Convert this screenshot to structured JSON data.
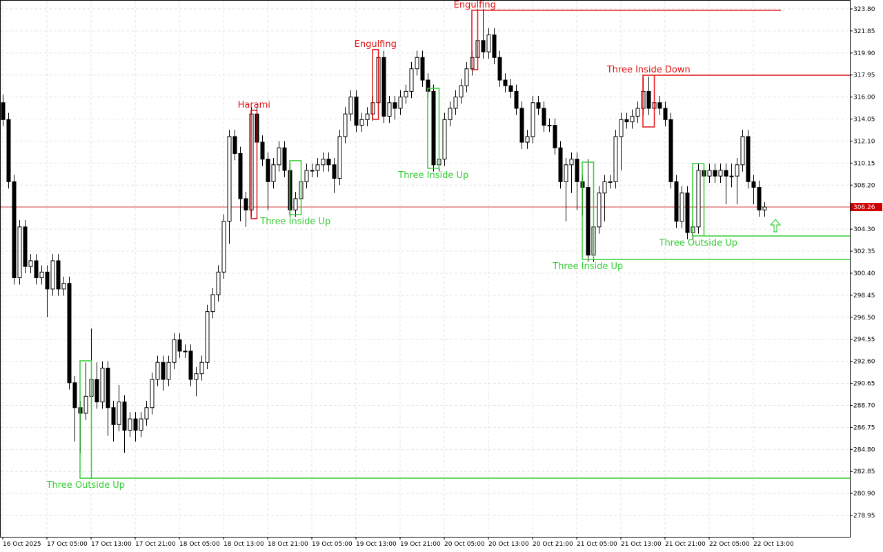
{
  "chart_data": {
    "type": "candlestick",
    "ylim": [
      277.06,
      324.59
    ],
    "yticks": [
      {
        "value": 323.8,
        "label": "323.80"
      },
      321.85,
      {
        "value": 319.9,
        "label": "319.90"
      },
      317.95,
      {
        "value": 316,
        "label": "316.00"
      },
      314.05,
      {
        "value": 312.1,
        "label": "312.10"
      },
      310.15,
      {
        "value": 308.2,
        "label": "308.20"
      },
      306.25,
      {
        "value": 304.3,
        "label": "304.30"
      },
      302.35,
      {
        "value": 300.4,
        "label": "300.40"
      },
      298.45,
      {
        "value": 296.5,
        "label": "296.50"
      },
      294.55,
      {
        "value": 292.6,
        "label": "292.60"
      },
      290.65,
      {
        "value": 288.7,
        "label": "288.70"
      },
      286.75,
      {
        "value": 284.8,
        "label": "284.80"
      },
      282.85,
      {
        "value": 280.9,
        "label": "280.90"
      },
      278.95
    ],
    "xticks": [
      {
        "value": 0,
        "label": "16 Oct 2025"
      },
      {
        "value": 8,
        "label": "17 Oct 05:00"
      },
      {
        "value": 16,
        "label": "17 Oct 13:00"
      },
      {
        "value": 24,
        "label": "17 Oct 21:00"
      },
      {
        "value": 32,
        "label": "18 Oct 05:00"
      },
      {
        "value": 40,
        "label": "18 Oct 13:00"
      },
      {
        "value": 48,
        "label": "18 Oct 21:00"
      },
      {
        "value": 56,
        "label": "19 Oct 05:00"
      },
      {
        "value": 64,
        "label": "19 Oct 13:00"
      },
      {
        "value": 72,
        "label": "19 Oct 21:00"
      },
      {
        "value": 80,
        "label": "20 Oct 05:00"
      },
      {
        "value": 88,
        "label": "20 Oct 13:00"
      },
      {
        "value": 96,
        "label": "20 Oct 21:00"
      },
      {
        "value": 104,
        "label": "21 Oct 05:00"
      },
      {
        "value": 112,
        "label": "21 Oct 13:00"
      },
      {
        "value": 120,
        "label": "21 Oct 21:00"
      },
      {
        "value": 128,
        "label": "22 Oct 05:00"
      },
      {
        "value": 136,
        "label": "22 Oct 13:00"
      }
    ],
    "grid": true,
    "current_price": {
      "value": 306.26,
      "label": "306.26",
      "color": "#d00000"
    },
    "series": [
      {
        "up_color": "#ffffff",
        "down_color": "#000000",
        "ohlc": [
          [
            315.5,
            316.2,
            313.4,
            314
          ],
          [
            314,
            314.6,
            307.9,
            308.5
          ],
          [
            308.5,
            309.1,
            299.4,
            300
          ],
          [
            300,
            305.1,
            299.4,
            304.5
          ],
          [
            304.5,
            305.1,
            300.4,
            301
          ],
          [
            301,
            302.1,
            300.4,
            301.5
          ],
          [
            301.5,
            302.1,
            299.4,
            300
          ],
          [
            300,
            301.1,
            299.4,
            300.5
          ],
          [
            300.5,
            301.1,
            296.5,
            299
          ],
          [
            299,
            302.1,
            298.4,
            301.5
          ],
          [
            301.5,
            302.1,
            298.4,
            299
          ],
          [
            299,
            300.1,
            298.4,
            299.5
          ],
          [
            299.5,
            300.1,
            290.1,
            290.7
          ],
          [
            290.7,
            291.3,
            285.5,
            288.5
          ],
          [
            288.5,
            289.1,
            284.5,
            288
          ],
          [
            288,
            292.5,
            287.4,
            289.5
          ],
          [
            289.5,
            295.5,
            288.9,
            291
          ],
          [
            291,
            292.5,
            288.4,
            289
          ],
          [
            289,
            292.6,
            288.4,
            292
          ],
          [
            292,
            292.6,
            286,
            288.5
          ],
          [
            288.5,
            289.1,
            285.5,
            287
          ],
          [
            287,
            290.5,
            286.4,
            289
          ],
          [
            289,
            289.6,
            284.5,
            286.5
          ],
          [
            286.5,
            288.1,
            285.9,
            287.5
          ],
          [
            287.5,
            288.1,
            285.5,
            286.5
          ],
          [
            286.5,
            288.1,
            285.9,
            287.5
          ],
          [
            287.5,
            289.1,
            286.9,
            288.5
          ],
          [
            288.5,
            291.6,
            287.9,
            291
          ],
          [
            291,
            293.1,
            290.4,
            292.5
          ],
          [
            292.5,
            293.1,
            290,
            291
          ],
          [
            291,
            293.1,
            290.4,
            292.5
          ],
          [
            292.5,
            295.1,
            291.9,
            294.5
          ],
          [
            294.5,
            295.1,
            292.9,
            293.5
          ],
          [
            293.5,
            294.1,
            292.9,
            293.5
          ],
          [
            293.5,
            294.1,
            290.4,
            291
          ],
          [
            291,
            292.1,
            289.5,
            291.5
          ],
          [
            291.5,
            293.1,
            290.9,
            292.5
          ],
          [
            292.5,
            297.6,
            291.9,
            297
          ],
          [
            297,
            299.1,
            296.4,
            298.5
          ],
          [
            298.5,
            301.1,
            297.9,
            300.5
          ],
          [
            300.5,
            305.6,
            299.9,
            305
          ],
          [
            305,
            313.1,
            303,
            312.5
          ],
          [
            312.5,
            313.1,
            310.4,
            311
          ],
          [
            311,
            311.6,
            305,
            307
          ],
          [
            307,
            307.6,
            304.5,
            306
          ],
          [
            306,
            315.1,
            305.4,
            314.5
          ],
          [
            314.5,
            315.1,
            311.4,
            312
          ],
          [
            312,
            312.6,
            309.9,
            310.5
          ],
          [
            310.5,
            311.1,
            306,
            308.5
          ],
          [
            308.5,
            310.6,
            307.9,
            310
          ],
          [
            310,
            312.1,
            309.4,
            311.5
          ],
          [
            311.5,
            312.1,
            308.9,
            309.5
          ],
          [
            309.5,
            310.1,
            305.4,
            306
          ],
          [
            306,
            307.6,
            305.4,
            307
          ],
          [
            307,
            309.1,
            306.4,
            308.5
          ],
          [
            308.5,
            310.1,
            307.9,
            309.5
          ],
          [
            309.5,
            310.1,
            308.9,
            309.5
          ],
          [
            309.5,
            310.6,
            308.9,
            310
          ],
          [
            310,
            311.1,
            309.4,
            310.5
          ],
          [
            310.5,
            311.1,
            309.4,
            310
          ],
          [
            310,
            310.6,
            307.5,
            308.8
          ],
          [
            308.8,
            313.1,
            308.2,
            312.5
          ],
          [
            312.5,
            315.1,
            311.9,
            314.5
          ],
          [
            314.5,
            316.6,
            313.9,
            316
          ],
          [
            316,
            316.6,
            312.9,
            313.5
          ],
          [
            313.5,
            314.6,
            312.9,
            314
          ],
          [
            314,
            315.1,
            313.4,
            314.5
          ],
          [
            314.5,
            316.1,
            313.9,
            315.5
          ],
          [
            315.5,
            320.1,
            314.9,
            319.5
          ],
          [
            319.5,
            320.1,
            313.7,
            314.3
          ],
          [
            314.3,
            316.1,
            313.7,
            315.5
          ],
          [
            315.5,
            316.1,
            314,
            315
          ],
          [
            315,
            316.6,
            314.4,
            316
          ],
          [
            316,
            317.1,
            315.4,
            316.5
          ],
          [
            316.5,
            319.1,
            315.9,
            318.5
          ],
          [
            318.5,
            320.1,
            317.9,
            319.5
          ],
          [
            319.5,
            320.1,
            316.9,
            317.5
          ],
          [
            317.5,
            318.1,
            315.9,
            316.5
          ],
          [
            316.5,
            317.1,
            309.4,
            310
          ],
          [
            310,
            311.1,
            309.4,
            310.5
          ],
          [
            310.5,
            314.6,
            309.9,
            314
          ],
          [
            314,
            315.6,
            313.4,
            315
          ],
          [
            315,
            316.6,
            314.4,
            316
          ],
          [
            316,
            317.6,
            315.4,
            317
          ],
          [
            317,
            319.1,
            316.4,
            318.5
          ],
          [
            318.5,
            320.1,
            317.9,
            319.5
          ],
          [
            319.5,
            323.8,
            318.9,
            321
          ],
          [
            321,
            323.8,
            319.4,
            320
          ],
          [
            320,
            322.1,
            319.4,
            321.5
          ],
          [
            321.5,
            322.1,
            318.9,
            319.5
          ],
          [
            319.5,
            320.1,
            316.9,
            317.5
          ],
          [
            317.5,
            318.1,
            316.4,
            317
          ],
          [
            317,
            317.6,
            315.9,
            316.5
          ],
          [
            316.5,
            317.1,
            314.4,
            315
          ],
          [
            315,
            315.6,
            311.4,
            312
          ],
          [
            312,
            313.1,
            311.4,
            312.5
          ],
          [
            312.5,
            316.1,
            311.9,
            315.5
          ],
          [
            315.5,
            316.1,
            314.4,
            315
          ],
          [
            315,
            315.6,
            312.9,
            313.5
          ],
          [
            313.5,
            314.1,
            312.9,
            313.5
          ],
          [
            313.5,
            314.1,
            310.9,
            311.5
          ],
          [
            311.5,
            312.1,
            307.9,
            308.5
          ],
          [
            308.5,
            310.6,
            305,
            310
          ],
          [
            310,
            311.1,
            307.5,
            310.5
          ],
          [
            310.5,
            311.1,
            306,
            308.5
          ],
          [
            308.5,
            309.1,
            305.5,
            308
          ],
          [
            308,
            310.5,
            301.4,
            302
          ],
          [
            302,
            305.1,
            301.4,
            304.5
          ],
          [
            304.5,
            308.1,
            303.9,
            307.5
          ],
          [
            307.5,
            309.1,
            305,
            308.5
          ],
          [
            308.5,
            309.1,
            307.9,
            308.5
          ],
          [
            308.5,
            313.1,
            307.9,
            312.5
          ],
          [
            312.5,
            314.6,
            309.5,
            314
          ],
          [
            314,
            314.6,
            313.2,
            313.8
          ],
          [
            313.8,
            314.9,
            313.2,
            314.3
          ],
          [
            314.3,
            315.6,
            313.7,
            315
          ],
          [
            315,
            317.8,
            314.4,
            316.5
          ],
          [
            316.5,
            317.8,
            314.4,
            315
          ],
          [
            315,
            316.1,
            314.4,
            315.5
          ],
          [
            315.5,
            316.1,
            314.4,
            315
          ],
          [
            315,
            315.6,
            313.4,
            314
          ],
          [
            314,
            314.6,
            307.9,
            308.5
          ],
          [
            308.5,
            309.1,
            304.4,
            305
          ],
          [
            305,
            308.1,
            304.4,
            307.5
          ],
          [
            307.5,
            308.1,
            303.4,
            304
          ],
          [
            304,
            305.1,
            303.4,
            304.5
          ],
          [
            304.5,
            310.1,
            303.9,
            309.5
          ],
          [
            309.5,
            310.1,
            308.4,
            309
          ],
          [
            309,
            310.1,
            308.4,
            309.5
          ],
          [
            309.5,
            310.1,
            308.4,
            309
          ],
          [
            309,
            310.1,
            308.4,
            309.5
          ],
          [
            309.5,
            310.1,
            306.5,
            309
          ],
          [
            309,
            310.1,
            308,
            309
          ],
          [
            309,
            310.6,
            306.5,
            310
          ],
          [
            310,
            313.1,
            309.4,
            312.5
          ],
          [
            312.5,
            313.1,
            307.9,
            308.5
          ],
          [
            308.5,
            309.1,
            306.5,
            308
          ],
          [
            308,
            308.6,
            305.4,
            306
          ],
          [
            306,
            306.7,
            305.4,
            306.26
          ]
        ]
      }
    ],
    "patterns": [
      {
        "label": "Three Outside Up",
        "color": "#33cc33",
        "start": 14,
        "end": 16,
        "high": 292.64,
        "low": 282.25,
        "line": "low"
      },
      {
        "label": "Harami",
        "color": "#e01010",
        "start": 45,
        "end": 46,
        "high": 314.82,
        "low": 305.23
      },
      {
        "label": "Three Inside Up",
        "color": "#33cc33",
        "start": 52,
        "end": 54,
        "high": 310.36,
        "low": 305.59
      },
      {
        "label": "Engulfing",
        "color": "#e01010",
        "start": 67,
        "end": 68,
        "high": 320.2,
        "low": 314.02
      },
      {
        "label": "Three Inside Up",
        "color": "#33cc33",
        "start": 77,
        "end": 79,
        "high": 316.77,
        "low": 309.69
      },
      {
        "label": "Engulfing",
        "color": "#e01010",
        "start": 85,
        "end": 86,
        "high": 323.68,
        "low": 318.42,
        "line": "high",
        "line_end": 141
      },
      {
        "label": "Three Inside Up",
        "color": "#33cc33",
        "start": 105,
        "end": 107,
        "high": 310.24,
        "low": 301.62,
        "line": "low"
      },
      {
        "label": "Three Inside Down",
        "color": "#e01010",
        "start": 116,
        "end": 118,
        "high": 317.93,
        "low": 313.35,
        "line": "high"
      },
      {
        "label": "Three Outside Up",
        "color": "#33cc33",
        "start": 125,
        "end": 127,
        "high": 310.11,
        "low": 303.7,
        "line": "low"
      }
    ]
  }
}
